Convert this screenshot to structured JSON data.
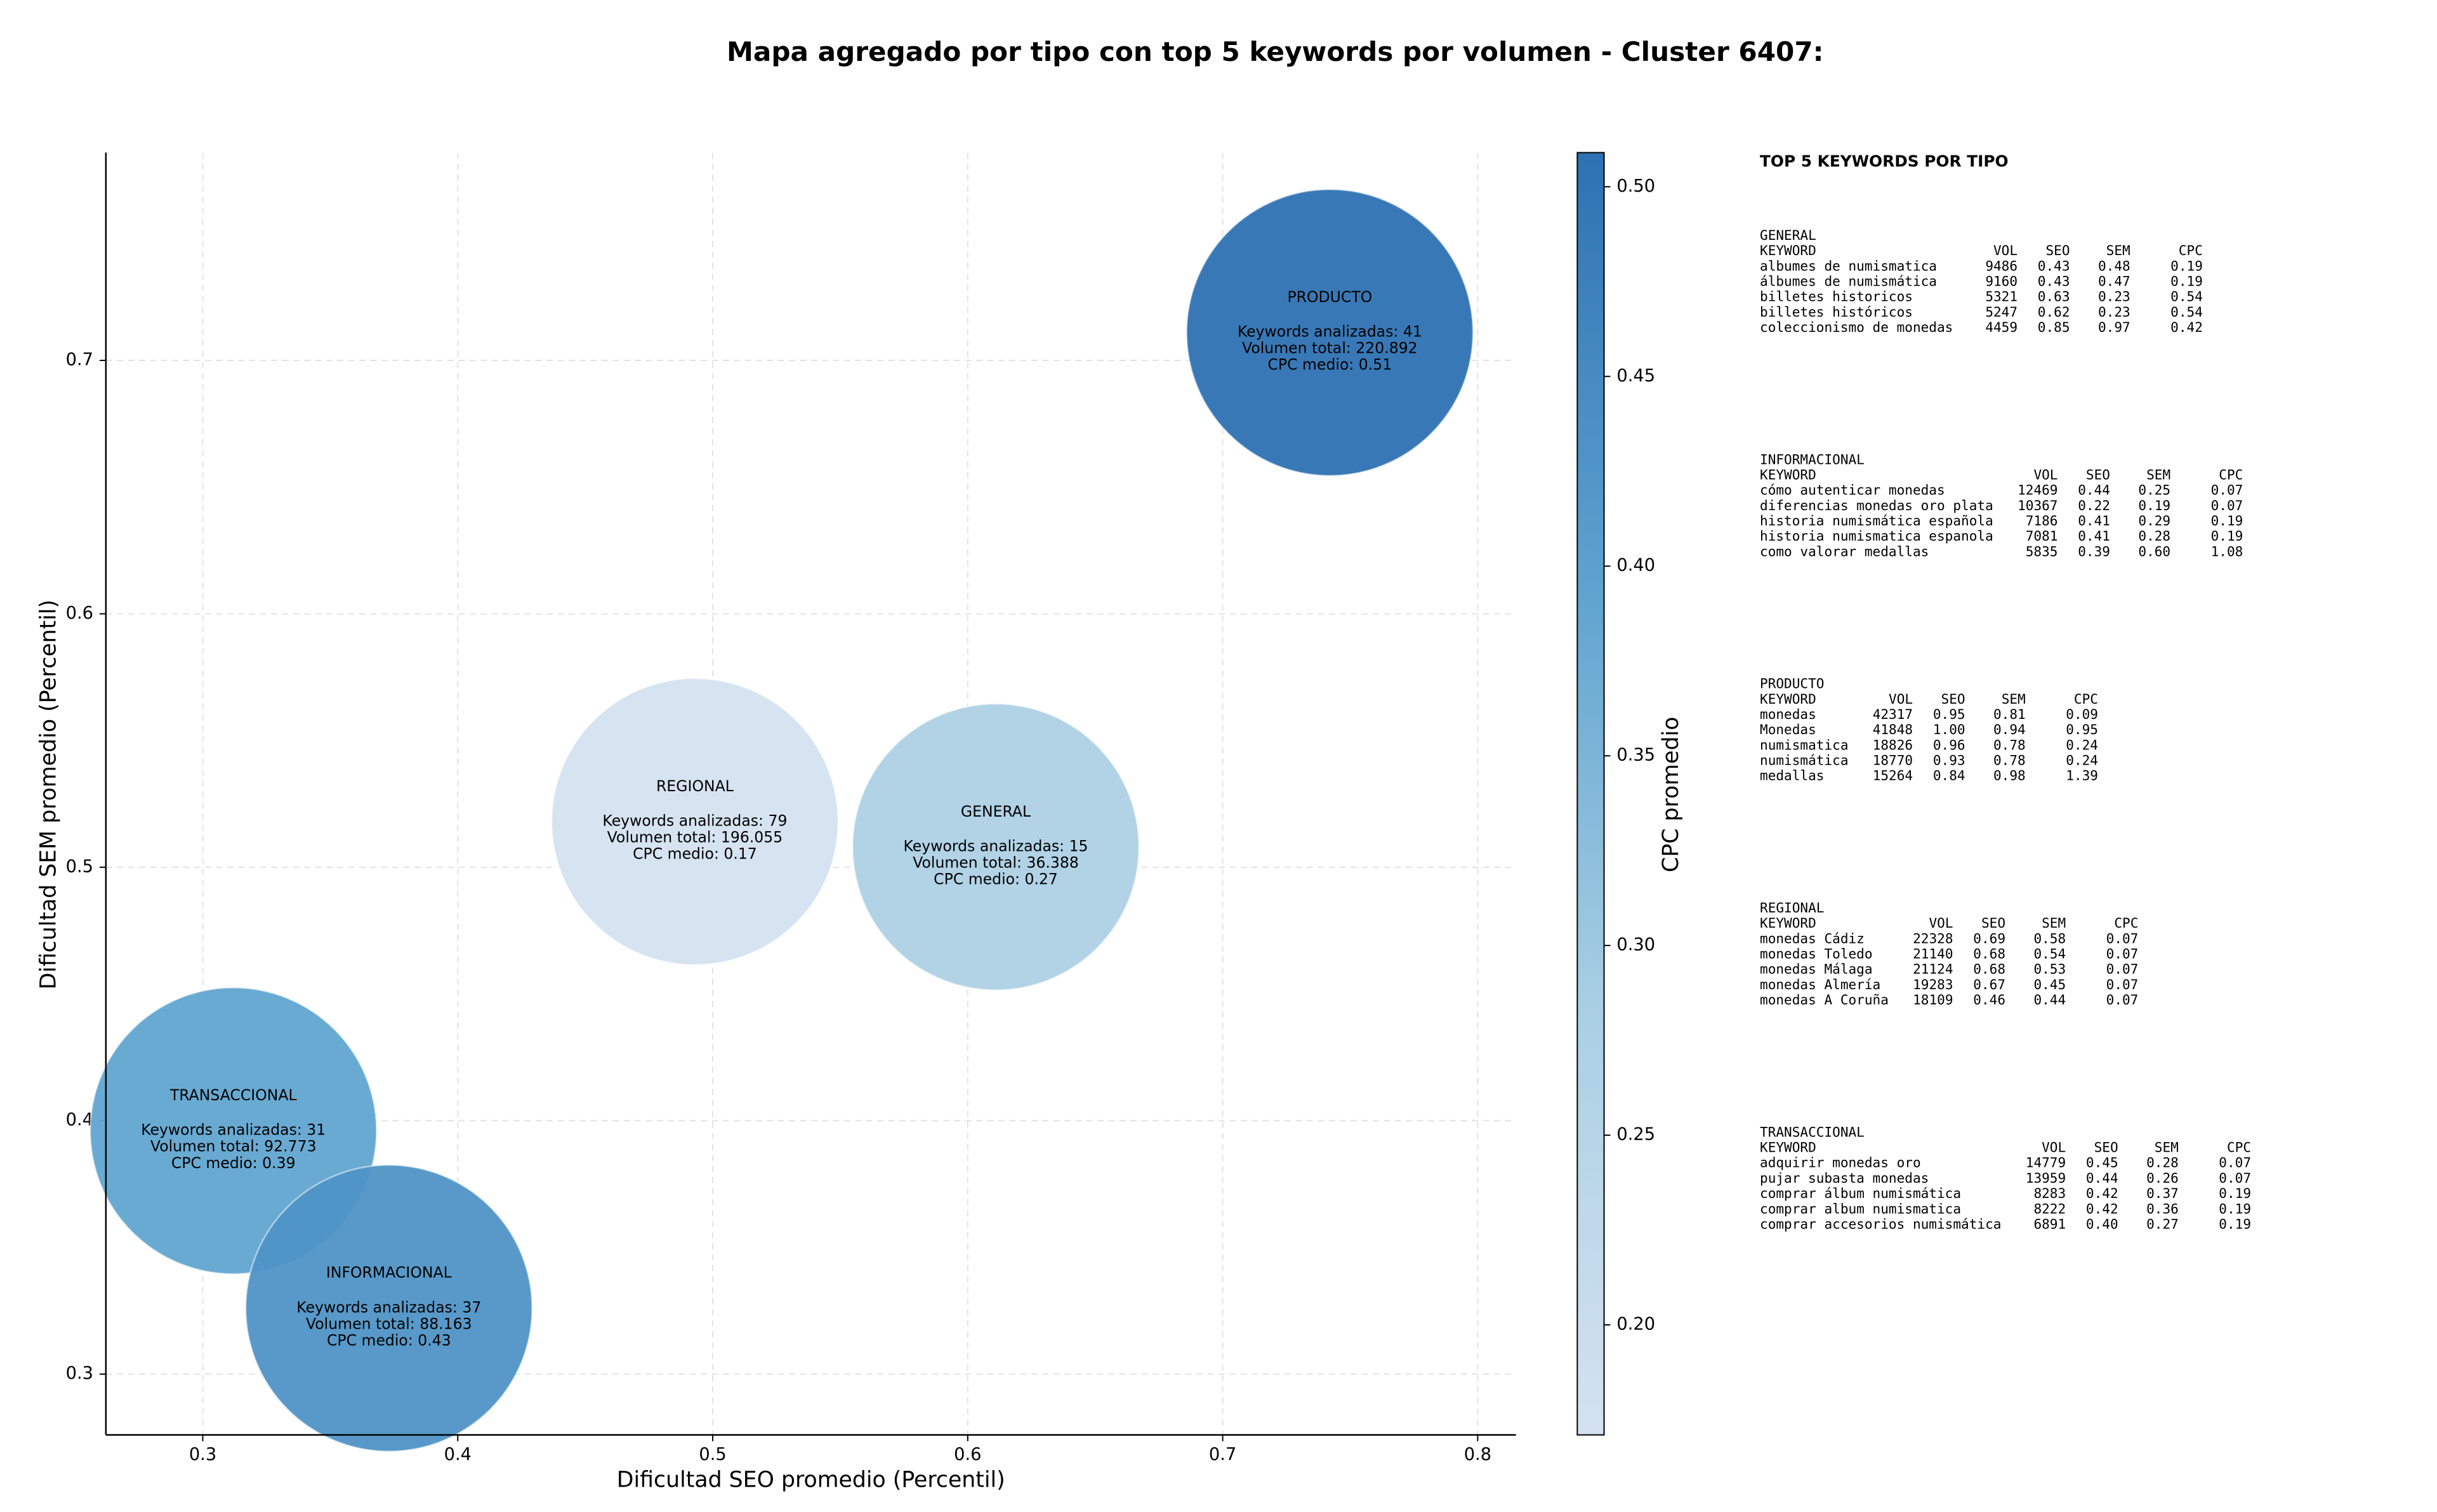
{
  "chart_data": {
    "type": "bubble",
    "title": "Mapa agregado por tipo con top 5 keywords por volumen - Cluster 6407:",
    "x_label": "Dificultad SEO promedio (Percentil)",
    "y_label": "Dificultad SEM promedio (Percentil)",
    "xlim": [
      0.262,
      0.815
    ],
    "ylim": [
      0.276,
      0.782
    ],
    "xticks": [
      0.3,
      0.4,
      0.5,
      0.6,
      0.7,
      0.8
    ],
    "yticks": [
      0.3,
      0.4,
      0.5,
      0.6,
      0.7
    ],
    "grid": true,
    "colorbar": {
      "label": "CPC promedio",
      "lim": [
        0.171,
        0.509
      ],
      "ticks": [
        {
          "value": 0.2,
          "label": "0.20"
        },
        0.25,
        {
          "value": 0.3,
          "label": "0.30"
        },
        0.35,
        {
          "value": 0.4,
          "label": "0.40"
        },
        0.45,
        {
          "value": 0.5,
          "label": "0.50"
        }
      ],
      "colormap": [
        "#d4e2f0",
        "#a9cfe4",
        "#5da2cf",
        "#2e71b2"
      ]
    },
    "points": [
      {
        "name": "PRODUCTO",
        "x": 0.742,
        "y": 0.711,
        "keywords": 41,
        "keywords_label": "Keywords analizadas: 41",
        "volume": 220892,
        "volume_label": "Volumen total: 220.892",
        "cpc": 0.51,
        "cpc_label": "CPC medio: 0.51"
      },
      {
        "name": "REGIONAL",
        "x": 0.493,
        "y": 0.518,
        "keywords": 79,
        "keywords_label": "Keywords analizadas: 79",
        "volume": 196055,
        "volume_label": "Volumen total: 196.055",
        "cpc": 0.17,
        "cpc_label": "CPC medio: 0.17"
      },
      {
        "name": "GENERAL",
        "x": 0.611,
        "y": 0.508,
        "keywords": 15,
        "keywords_label": "Keywords analizadas: 15",
        "volume": 36388,
        "volume_label": "Volumen total: 36.388",
        "cpc": 0.27,
        "cpc_label": "CPC medio: 0.27"
      },
      {
        "name": "TRANSACCIONAL",
        "x": 0.312,
        "y": 0.396,
        "keywords": 31,
        "keywords_label": "Keywords analizadas: 31",
        "volume": 92773,
        "volume_label": "Volumen total: 92.773",
        "cpc": 0.39,
        "cpc_label": "CPC medio: 0.39"
      },
      {
        "name": "INFORMACIONAL",
        "x": 0.373,
        "y": 0.326,
        "keywords": 37,
        "keywords_label": "Keywords analizadas: 37",
        "volume": 88163,
        "volume_label": "Volumen total: 88.163",
        "cpc": 0.43,
        "cpc_label": "CPC medio: 0.43"
      }
    ]
  },
  "keyword_panel": {
    "title": "TOP 5 KEYWORDS POR TIPO",
    "groups": [
      {
        "name": "GENERAL",
        "columns": [
          "KEYWORD",
          "VOL",
          "SEO",
          "SEM",
          "CPC"
        ],
        "rows": [
          [
            "albumes de numismatica",
            "9486",
            "0.43",
            "0.48",
            "0.19"
          ],
          [
            "álbumes de numismática",
            "9160",
            "0.43",
            "0.47",
            "0.19"
          ],
          [
            "billetes historicos",
            "5321",
            "0.63",
            "0.23",
            "0.54"
          ],
          [
            "billetes históricos",
            "5247",
            "0.62",
            "0.23",
            "0.54"
          ],
          [
            "coleccionismo de monedas",
            "4459",
            "0.85",
            "0.97",
            "0.42"
          ]
        ]
      },
      {
        "name": "INFORMACIONAL",
        "columns": [
          "KEYWORD",
          "VOL",
          "SEO",
          "SEM",
          "CPC"
        ],
        "rows": [
          [
            "cómo autenticar monedas",
            "12469",
            "0.44",
            "0.25",
            "0.07"
          ],
          [
            "diferencias monedas oro plata",
            "10367",
            "0.22",
            "0.19",
            "0.07"
          ],
          [
            "historia numismática española",
            "7186",
            "0.41",
            "0.29",
            "0.19"
          ],
          [
            "historia numismatica espanola",
            "7081",
            "0.41",
            "0.28",
            "0.19"
          ],
          [
            "como valorar medallas",
            "5835",
            "0.39",
            "0.60",
            "1.08"
          ]
        ]
      },
      {
        "name": "PRODUCTO",
        "columns": [
          "KEYWORD",
          "VOL",
          "SEO",
          "SEM",
          "CPC"
        ],
        "rows": [
          [
            "monedas",
            "42317",
            "0.95",
            "0.81",
            "0.09"
          ],
          [
            "Monedas",
            "41848",
            "1.00",
            "0.94",
            "0.95"
          ],
          [
            "numismatica",
            "18826",
            "0.96",
            "0.78",
            "0.24"
          ],
          [
            "numismática",
            "18770",
            "0.93",
            "0.78",
            "0.24"
          ],
          [
            "medallas",
            "15264",
            "0.84",
            "0.98",
            "1.39"
          ]
        ]
      },
      {
        "name": "REGIONAL",
        "columns": [
          "KEYWORD",
          "VOL",
          "SEO",
          "SEM",
          "CPC"
        ],
        "rows": [
          [
            "monedas Cádiz",
            "22328",
            "0.69",
            "0.58",
            "0.07"
          ],
          [
            "monedas Toledo",
            "21140",
            "0.68",
            "0.54",
            "0.07"
          ],
          [
            "monedas Málaga",
            "21124",
            "0.68",
            "0.53",
            "0.07"
          ],
          [
            "monedas Almería",
            "19283",
            "0.67",
            "0.45",
            "0.07"
          ],
          [
            "monedas A Coruña",
            "18109",
            "0.46",
            "0.44",
            "0.07"
          ]
        ]
      },
      {
        "name": "TRANSACCIONAL",
        "columns": [
          "KEYWORD",
          "VOL",
          "SEO",
          "SEM",
          "CPC"
        ],
        "rows": [
          [
            "adquirir monedas oro",
            "14779",
            "0.45",
            "0.28",
            "0.07"
          ],
          [
            "pujar subasta monedas",
            "13959",
            "0.44",
            "0.26",
            "0.07"
          ],
          [
            "comprar álbum numismática",
            "8283",
            "0.42",
            "0.37",
            "0.19"
          ],
          [
            "comprar album numismatica",
            "8222",
            "0.42",
            "0.36",
            "0.19"
          ],
          [
            "comprar accesorios numismática",
            "6891",
            "0.40",
            "0.27",
            "0.19"
          ]
        ]
      }
    ]
  }
}
